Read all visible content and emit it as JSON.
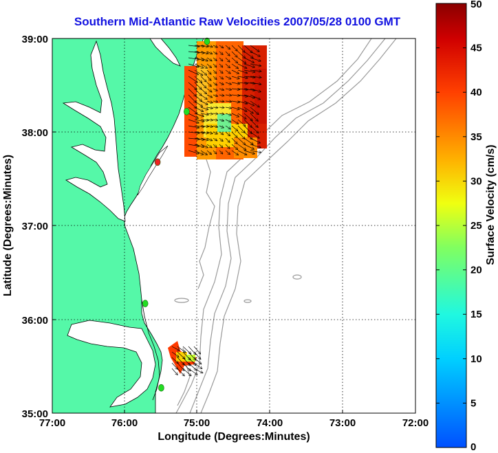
{
  "title": "Southern Mid-Atlantic Raw Velocities 2007/05/28 0100 GMT",
  "x_axis": {
    "label": "Longitude (Degrees:Minutes)",
    "ticks": [
      "77:00",
      "76:00",
      "75:00",
      "74:00",
      "73:00",
      "72:00"
    ]
  },
  "y_axis": {
    "label": "Latitude (Degrees:Minutes)",
    "ticks": [
      "39:00",
      "38:00",
      "37:00",
      "36:00",
      "35:00"
    ]
  },
  "colorbar": {
    "label": "Surface Velocity (cm/s)",
    "ticks": [
      "50",
      "45",
      "40",
      "35",
      "30",
      "25",
      "20",
      "15",
      "10",
      "5",
      "0"
    ],
    "range": [
      0,
      50
    ]
  },
  "map_extent": {
    "lon": [
      -77,
      -72
    ],
    "lat": [
      35,
      39
    ]
  },
  "colors": {
    "land": "#55f8a8",
    "title": "#1010e0",
    "bathymetry": "#999999",
    "station_active": "#22dd22",
    "station_alert": "#ee2222"
  },
  "stations": [
    {
      "lon": -74.87,
      "lat": 38.97,
      "status": "active"
    },
    {
      "lon": -75.15,
      "lat": 38.22,
      "status": "active"
    },
    {
      "lon": -75.55,
      "lat": 37.68,
      "status": "alert"
    },
    {
      "lon": -75.72,
      "lat": 36.17,
      "status": "active"
    },
    {
      "lon": -75.5,
      "lat": 35.27,
      "status": "active"
    }
  ]
}
